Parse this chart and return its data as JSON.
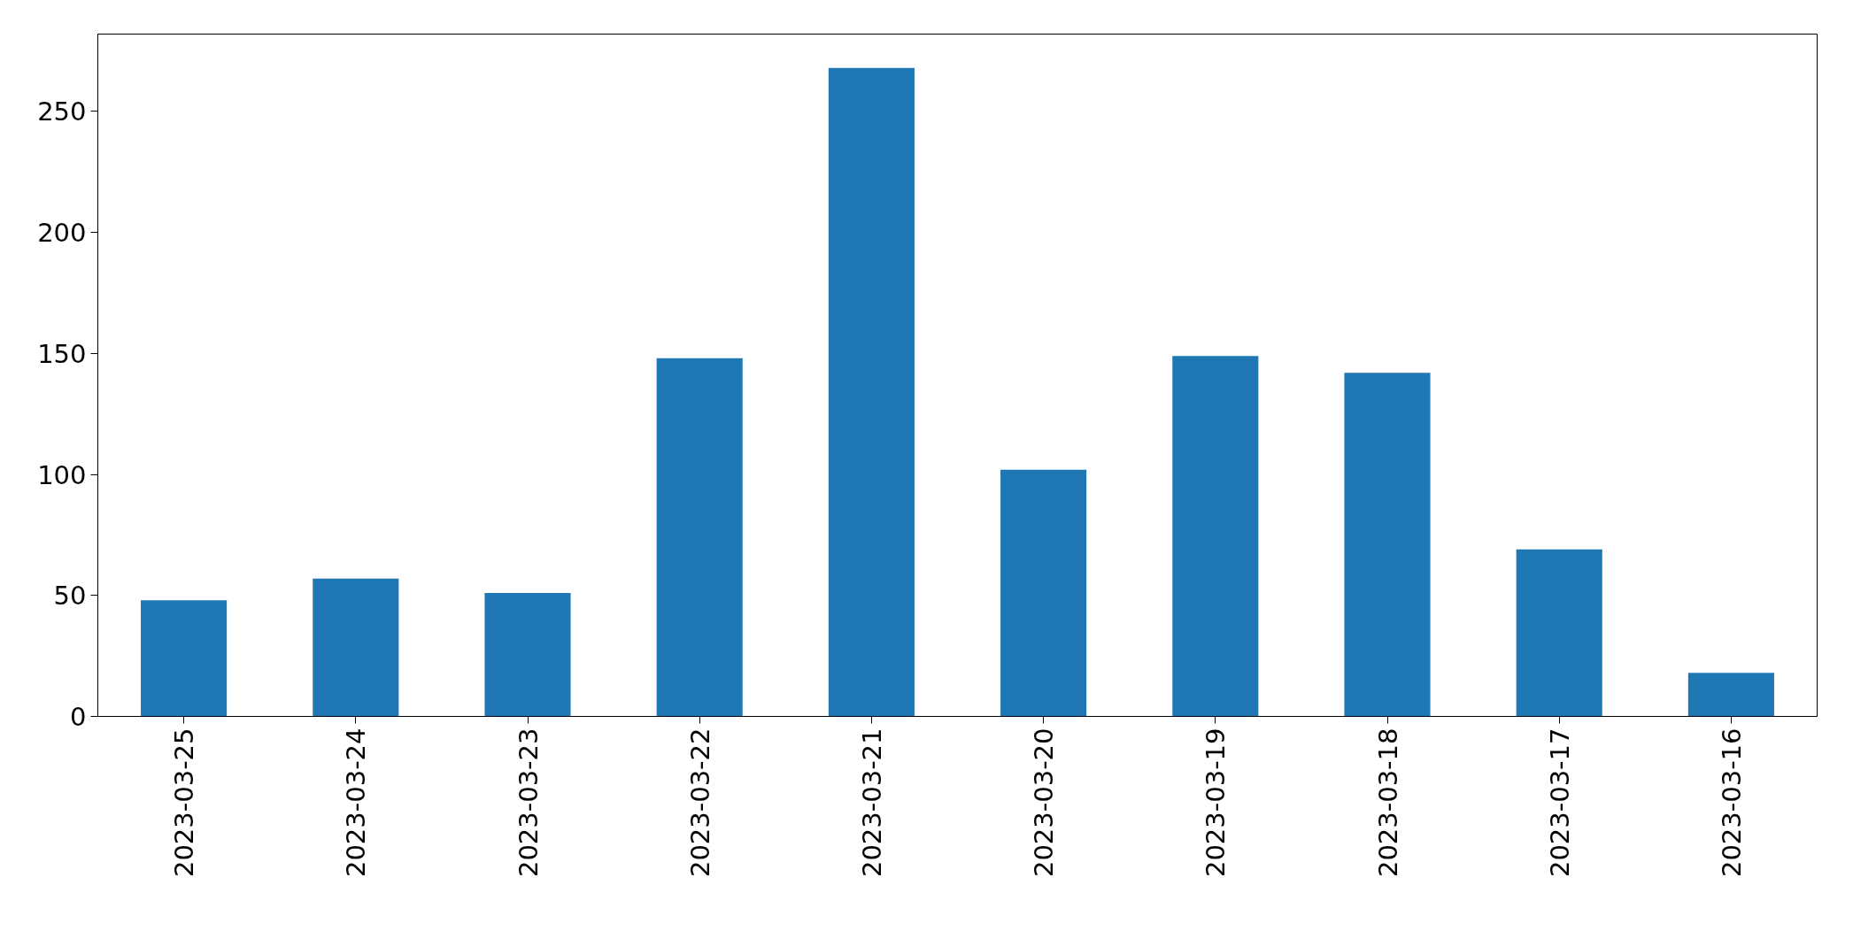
{
  "chart_data": {
    "type": "bar",
    "categories": [
      "2023-03-25",
      "2023-03-24",
      "2023-03-23",
      "2023-03-22",
      "2023-03-21",
      "2023-03-20",
      "2023-03-19",
      "2023-03-18",
      "2023-03-17",
      "2023-03-16"
    ],
    "values": [
      48,
      57,
      51,
      148,
      268,
      102,
      149,
      142,
      69,
      18
    ],
    "color": "#1f77b4",
    "ylim": [
      0,
      282
    ],
    "yticks": [
      0,
      50,
      100,
      150,
      200,
      250
    ],
    "grid": false
  }
}
